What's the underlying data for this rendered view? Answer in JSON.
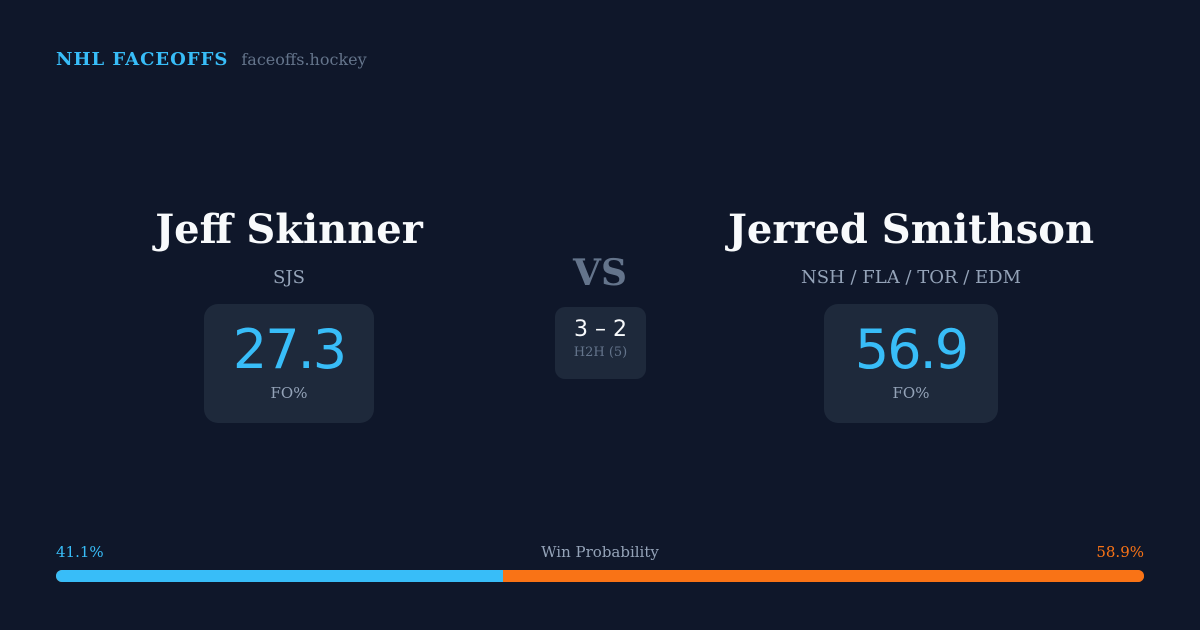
{
  "brand": {
    "name": "NHL FACEOFFS",
    "url": "faceoffs.hockey"
  },
  "player1": {
    "name": "Jeff Skinner",
    "team": "SJS",
    "fo_pct": "27.3",
    "fo_label": "FO%"
  },
  "player2": {
    "name": "Jerred Smithson",
    "team": "NSH / FLA / TOR / EDM",
    "fo_pct": "56.9",
    "fo_label": "FO%"
  },
  "vs": "VS",
  "h2h": {
    "score": "3 – 2",
    "label": "H2H (5)"
  },
  "win_probability": {
    "label": "Win Probability",
    "left": "41.1%",
    "right": "58.9%",
    "left_value": 41.1,
    "right_value": 58.9,
    "colors": {
      "left": "#38bdf8",
      "right": "#f97316"
    }
  }
}
